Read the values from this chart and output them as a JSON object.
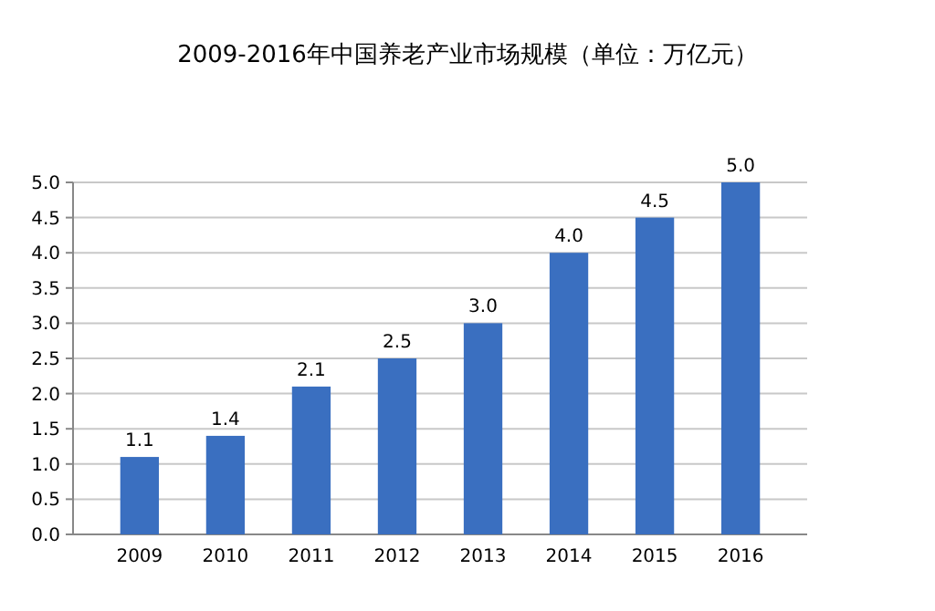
{
  "chart_data": {
    "type": "bar",
    "title": "2009-2016年中国养老产业市场规模（单位：万亿元）",
    "categories": [
      "2009",
      "2010",
      "2011",
      "2012",
      "2013",
      "2014",
      "2015",
      "2016"
    ],
    "values": [
      1.1,
      1.4,
      2.1,
      2.5,
      3.0,
      4.0,
      4.5,
      5.0
    ],
    "value_labels": [
      "1.1",
      "1.4",
      "2.1",
      "2.5",
      "3.0",
      "4.0",
      "4.5",
      "5.0"
    ],
    "color": "#3a6fc0",
    "ylim": [
      0,
      5
    ],
    "yticks": [
      {
        "value": 0,
        "label": "0.0"
      },
      {
        "value": 0.5,
        "label": "0.5"
      },
      {
        "value": 1,
        "label": "1.0"
      },
      {
        "value": 1.5,
        "label": "1.5"
      },
      {
        "value": 2,
        "label": "2.0"
      },
      {
        "value": 2.5,
        "label": "2.5"
      },
      {
        "value": 3,
        "label": "3.0"
      },
      {
        "value": 3.5,
        "label": "3.5"
      },
      {
        "value": 4,
        "label": "4.0"
      },
      {
        "value": 4.5,
        "label": "4.5"
      },
      {
        "value": 5,
        "label": "5.0"
      }
    ],
    "grid": "y"
  }
}
